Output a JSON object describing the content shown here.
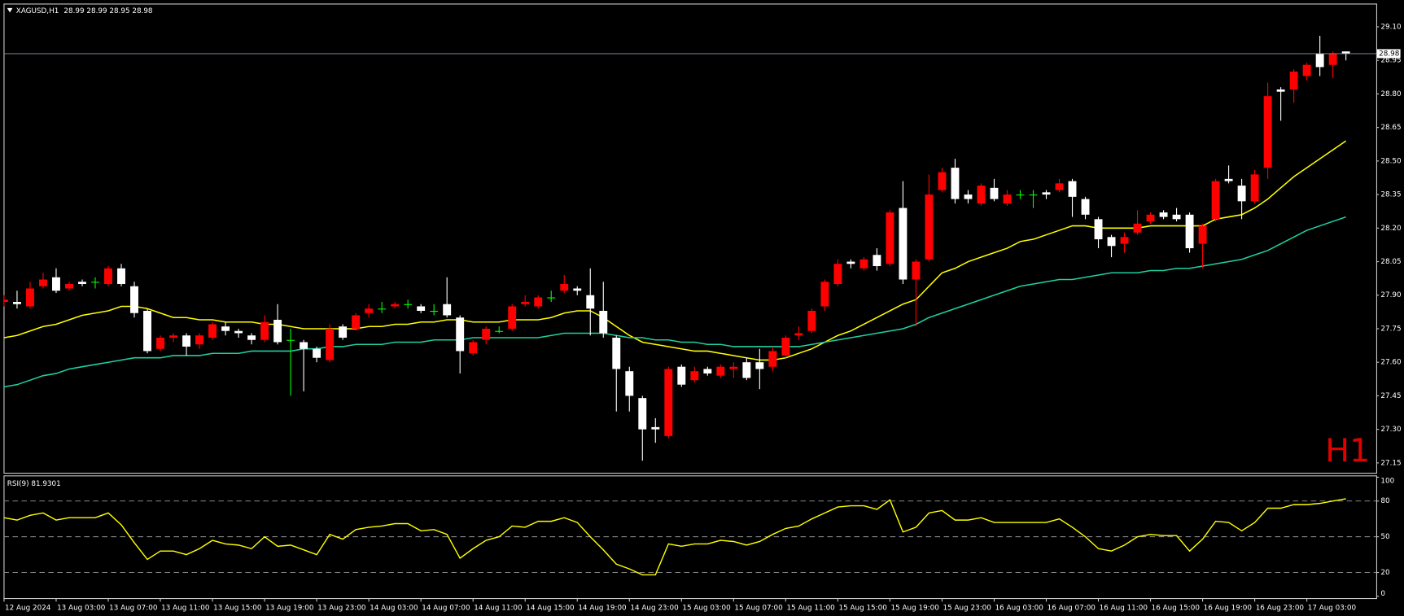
{
  "chart_data": [
    {
      "type": "candlestick",
      "title": "XAGUSD,H1",
      "header_values": [
        28.99,
        28.99,
        28.95,
        28.98
      ],
      "watermark": "H1",
      "categories": [
        "12 Aug 2024",
        null,
        null,
        null,
        "13 Aug 03:00",
        null,
        null,
        null,
        "13 Aug 07:00",
        null,
        null,
        null,
        "13 Aug 11:00",
        null,
        null,
        null,
        "13 Aug 15:00",
        null,
        null,
        null,
        "13 Aug 19:00",
        null,
        null,
        null,
        "13 Aug 23:00",
        null,
        null,
        null,
        "14 Aug 03:00",
        null,
        null,
        null,
        "14 Aug 07:00",
        null,
        null,
        null,
        "14 Aug 11:00",
        null,
        null,
        null,
        "14 Aug 15:00",
        null,
        null,
        null,
        "14 Aug 19:00",
        null,
        null,
        null,
        "14 Aug 23:00",
        null,
        null,
        null,
        "15 Aug 03:00",
        null,
        null,
        null,
        "15 Aug 07:00",
        null,
        null,
        null,
        "15 Aug 11:00",
        null,
        null,
        null,
        "15 Aug 15:00",
        null,
        null,
        null,
        "15 Aug 19:00",
        null,
        null,
        null,
        "15 Aug 23:00",
        null,
        null,
        null,
        "16 Aug 03:00",
        null,
        null,
        null,
        "16 Aug 07:00",
        null,
        null,
        null,
        "16 Aug 11:00",
        null,
        null,
        null,
        "16 Aug 15:00",
        null,
        null,
        null,
        "16 Aug 19:00",
        null,
        null,
        null,
        "16 Aug 23:00",
        null,
        null,
        null,
        "17 Aug 03:00",
        null,
        null,
        null
      ],
      "open": [
        27.87,
        27.87,
        27.85,
        27.94,
        27.98,
        27.93,
        27.96,
        27.96,
        27.95,
        28.02,
        27.94,
        27.83,
        27.66,
        27.71,
        27.72,
        27.68,
        27.71,
        27.76,
        27.74,
        27.72,
        27.7,
        27.79,
        27.7,
        27.69,
        27.66,
        27.61,
        27.76,
        27.75,
        27.82,
        27.84,
        27.85,
        27.86,
        27.85,
        27.83,
        27.86,
        27.8,
        27.64,
        27.7,
        27.74,
        27.75,
        27.86,
        27.85,
        27.89,
        27.92,
        27.93,
        27.9,
        27.83,
        27.71,
        27.56,
        27.44,
        27.31,
        27.27,
        27.58,
        27.52,
        27.57,
        27.54,
        27.57,
        27.6,
        27.6,
        27.58,
        27.63,
        27.72,
        27.74,
        27.85,
        27.95,
        28.05,
        28.02,
        28.08,
        28.04,
        28.29,
        27.97,
        28.06,
        28.37,
        28.47,
        28.35,
        28.31,
        28.38,
        28.31,
        28.35,
        28.35,
        28.36,
        28.37,
        28.41,
        28.33,
        28.24,
        28.16,
        28.13,
        28.18,
        28.23,
        28.27,
        28.26,
        28.26,
        28.13,
        28.24,
        28.42,
        28.39,
        28.32,
        28.47,
        28.82,
        28.82,
        28.88,
        28.98,
        28.93,
        28.99
      ],
      "high": [
        27.9,
        27.92,
        27.96,
        28.0,
        28.02,
        27.96,
        27.97,
        27.98,
        28.03,
        28.04,
        27.96,
        27.84,
        27.72,
        27.73,
        27.73,
        27.73,
        27.78,
        27.78,
        27.75,
        27.73,
        27.81,
        27.86,
        27.75,
        27.7,
        27.67,
        27.77,
        27.77,
        27.82,
        27.86,
        27.87,
        27.87,
        27.88,
        27.86,
        27.86,
        27.98,
        27.81,
        27.7,
        27.76,
        27.76,
        27.86,
        27.9,
        27.9,
        27.92,
        27.99,
        27.94,
        28.02,
        27.96,
        27.72,
        27.58,
        27.45,
        27.35,
        27.58,
        27.59,
        27.58,
        27.58,
        27.59,
        27.6,
        27.62,
        27.66,
        27.67,
        27.72,
        27.76,
        27.84,
        27.97,
        28.06,
        28.06,
        28.07,
        28.11,
        28.28,
        28.41,
        28.06,
        28.44,
        28.47,
        28.51,
        28.37,
        28.4,
        28.42,
        28.37,
        28.37,
        28.37,
        28.37,
        28.42,
        28.42,
        28.34,
        28.25,
        28.17,
        28.18,
        28.28,
        28.27,
        28.28,
        28.29,
        28.27,
        28.22,
        28.42,
        28.48,
        28.42,
        28.46,
        28.85,
        28.83,
        28.91,
        28.94,
        29.06,
        28.99,
        28.99
      ],
      "low": [
        27.85,
        27.84,
        27.84,
        27.93,
        27.91,
        27.92,
        27.94,
        27.93,
        27.94,
        27.94,
        27.8,
        27.64,
        27.65,
        27.69,
        27.63,
        27.66,
        27.7,
        27.72,
        27.71,
        27.68,
        27.69,
        27.68,
        27.45,
        27.47,
        27.6,
        27.6,
        27.7,
        27.74,
        27.8,
        27.82,
        27.84,
        27.84,
        27.82,
        27.81,
        27.8,
        27.55,
        27.63,
        27.68,
        27.73,
        27.74,
        27.85,
        27.84,
        27.87,
        27.91,
        27.9,
        27.72,
        27.71,
        27.38,
        27.38,
        27.16,
        27.24,
        27.26,
        27.49,
        27.51,
        27.54,
        27.53,
        27.53,
        27.52,
        27.48,
        27.56,
        27.62,
        27.7,
        27.73,
        27.83,
        27.94,
        28.02,
        28.01,
        28.01,
        28.03,
        27.95,
        27.76,
        28.05,
        28.36,
        28.31,
        28.31,
        28.3,
        28.32,
        28.3,
        28.33,
        28.29,
        28.33,
        28.36,
        28.25,
        28.24,
        28.11,
        28.07,
        28.09,
        28.17,
        28.22,
        28.24,
        28.23,
        28.09,
        28.02,
        28.23,
        28.4,
        28.24,
        28.31,
        28.42,
        28.68,
        28.76,
        28.86,
        28.88,
        28.87,
        28.95
      ],
      "close": [
        27.88,
        27.86,
        27.93,
        27.97,
        27.92,
        27.95,
        27.95,
        27.96,
        28.02,
        27.95,
        27.82,
        27.65,
        27.71,
        27.72,
        27.67,
        27.72,
        27.77,
        27.74,
        27.73,
        27.7,
        27.78,
        27.69,
        27.7,
        27.66,
        27.62,
        27.75,
        27.71,
        27.81,
        27.84,
        27.84,
        27.86,
        27.86,
        27.83,
        27.83,
        27.81,
        27.65,
        27.69,
        27.75,
        27.74,
        27.85,
        27.87,
        27.89,
        27.89,
        27.95,
        27.92,
        27.84,
        27.73,
        27.57,
        27.45,
        27.3,
        27.3,
        27.57,
        27.5,
        27.56,
        27.55,
        27.58,
        27.58,
        27.53,
        27.57,
        27.65,
        27.71,
        27.73,
        27.83,
        27.96,
        28.04,
        28.04,
        28.06,
        28.03,
        28.27,
        27.97,
        28.05,
        28.35,
        28.45,
        28.33,
        28.33,
        28.39,
        28.33,
        28.35,
        28.35,
        28.35,
        28.35,
        28.4,
        28.34,
        28.26,
        28.15,
        28.12,
        28.16,
        28.22,
        28.26,
        28.25,
        28.24,
        28.11,
        28.21,
        28.41,
        28.41,
        28.32,
        28.44,
        28.79,
        28.81,
        28.9,
        28.93,
        28.92,
        28.98,
        28.98
      ],
      "bull_color": "#ff0000",
      "bear_color": "#ffffff",
      "doji_color": "#00ff00",
      "moving_averages": [
        {
          "color": "#ffff00",
          "values": [
            27.71,
            27.72,
            27.74,
            27.76,
            27.77,
            27.79,
            27.81,
            27.82,
            27.83,
            27.85,
            27.85,
            27.84,
            27.82,
            27.8,
            27.8,
            27.79,
            27.79,
            27.78,
            27.78,
            27.78,
            27.77,
            27.77,
            27.76,
            27.75,
            27.75,
            27.75,
            27.75,
            27.75,
            27.76,
            27.76,
            27.77,
            27.77,
            27.78,
            27.78,
            27.79,
            27.79,
            27.78,
            27.78,
            27.78,
            27.79,
            27.79,
            27.79,
            27.8,
            27.82,
            27.83,
            27.83,
            27.8,
            27.76,
            27.72,
            27.69,
            27.68,
            27.67,
            27.66,
            27.65,
            27.65,
            27.64,
            27.63,
            27.62,
            27.61,
            27.61,
            27.62,
            27.64,
            27.66,
            27.69,
            27.72,
            27.74,
            27.77,
            27.8,
            27.83,
            27.86,
            27.88,
            27.94,
            28.0,
            28.02,
            28.05,
            28.07,
            28.09,
            28.11,
            28.14,
            28.15,
            28.17,
            28.19,
            28.21,
            28.21,
            28.2,
            28.2,
            28.2,
            28.2,
            28.21,
            28.21,
            28.21,
            28.21,
            28.21,
            28.24,
            28.25,
            28.26,
            28.29,
            28.33,
            28.38,
            28.43,
            28.47,
            28.51,
            28.55,
            28.59
          ]
        },
        {
          "color": "#20d0a0",
          "values": [
            27.49,
            27.5,
            27.52,
            27.54,
            27.55,
            27.57,
            27.58,
            27.59,
            27.6,
            27.61,
            27.62,
            27.62,
            27.62,
            27.63,
            27.63,
            27.63,
            27.64,
            27.64,
            27.64,
            27.65,
            27.65,
            27.65,
            27.65,
            27.66,
            27.66,
            27.67,
            27.67,
            27.68,
            27.68,
            27.68,
            27.69,
            27.69,
            27.69,
            27.7,
            27.7,
            27.7,
            27.71,
            27.71,
            27.71,
            27.71,
            27.71,
            27.71,
            27.72,
            27.73,
            27.73,
            27.73,
            27.73,
            27.72,
            27.71,
            27.71,
            27.7,
            27.7,
            27.69,
            27.69,
            27.68,
            27.68,
            27.67,
            27.67,
            27.67,
            27.67,
            27.67,
            27.67,
            27.68,
            27.69,
            27.7,
            27.71,
            27.72,
            27.73,
            27.74,
            27.75,
            27.77,
            27.8,
            27.82,
            27.84,
            27.86,
            27.88,
            27.9,
            27.92,
            27.94,
            27.95,
            27.96,
            27.97,
            27.97,
            27.98,
            27.99,
            28.0,
            28.0,
            28.0,
            28.01,
            28.01,
            28.02,
            28.02,
            28.03,
            28.04,
            28.05,
            28.06,
            28.08,
            28.1,
            28.13,
            28.16,
            28.19,
            28.21,
            28.23,
            28.25
          ]
        }
      ],
      "current_price": 28.98,
      "ylim": [
        27.11,
        29.2
      ],
      "yticks": [
        {
          "value": 29.1,
          "label": "29.10"
        },
        28.95,
        {
          "value": 28.8,
          "label": "28.80"
        },
        28.65,
        {
          "value": 28.5,
          "label": "28.50"
        },
        28.35,
        {
          "value": 28.2,
          "label": "28.20"
        },
        28.05,
        {
          "value": 27.9,
          "label": "27.90"
        },
        27.75,
        {
          "value": 27.6,
          "label": "27.60"
        },
        27.45,
        {
          "value": 27.3,
          "label": "27.30"
        },
        27.15
      ]
    },
    {
      "type": "line",
      "title": "RSI(9)",
      "current_value": 81.9301,
      "color": "#ffff00",
      "values": [
        66,
        64,
        68,
        70,
        64,
        66,
        66,
        66,
        70,
        60,
        45,
        31,
        38,
        38,
        35,
        40,
        47,
        44,
        43,
        40,
        50,
        42,
        43,
        39,
        35,
        52,
        48,
        56,
        58,
        59,
        61,
        61,
        55,
        56,
        52,
        32,
        40,
        47,
        50,
        59,
        58,
        63,
        63,
        66,
        62,
        50,
        39,
        27,
        23,
        18,
        18,
        44,
        42,
        44,
        44,
        47,
        46,
        43,
        46,
        52,
        57,
        59,
        65,
        70,
        75,
        76,
        76,
        73,
        81,
        54,
        58,
        70,
        72,
        64,
        64,
        66,
        62,
        62,
        62,
        62,
        62,
        65,
        58,
        50,
        40,
        38,
        43,
        50,
        52,
        51,
        51,
        38,
        48,
        63,
        62,
        55,
        62,
        74,
        74,
        77,
        77,
        78,
        80,
        81.93
      ],
      "ylim": [
        0,
        100
      ],
      "yticks": [
        0,
        20,
        50,
        80,
        100
      ],
      "levels": [
        20,
        50,
        80
      ]
    }
  ]
}
